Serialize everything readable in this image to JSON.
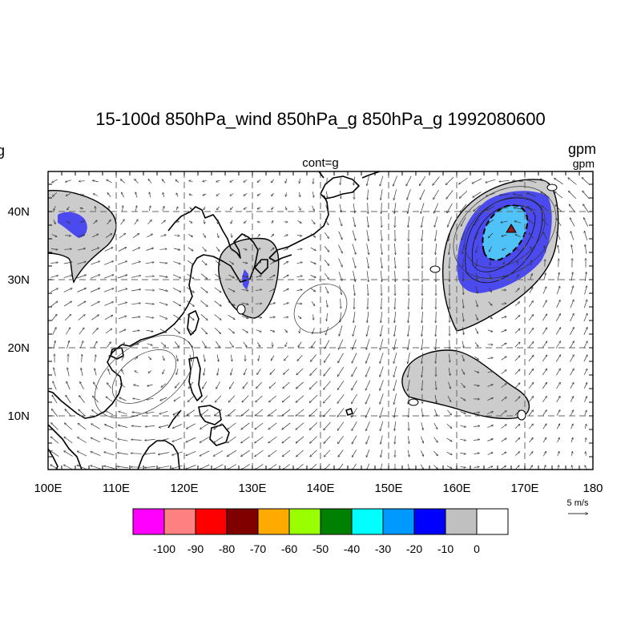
{
  "title": "15-100d 850hPa_wind 850hPa_g 850hPa_g 1992080600",
  "left_partial": "g",
  "center_subtitle": "cont=g",
  "right_units": "gpm",
  "right_units_small": "gpm",
  "ref_vector": {
    "label": "5 m/s"
  },
  "map": {
    "lon_labels": [
      "100E",
      "110E",
      "120E",
      "130E",
      "140E",
      "150E",
      "160E",
      "170E",
      "180"
    ],
    "lat_labels": [
      "10N",
      "20N",
      "30N",
      "40N"
    ],
    "zero_labels": [
      "0",
      "0",
      "0",
      "0",
      "0"
    ]
  },
  "colorbar": {
    "labels": [
      "-100",
      "-90",
      "-80",
      "-70",
      "-60",
      "-50",
      "-40",
      "-30",
      "-20",
      "-10",
      "0"
    ],
    "colors": [
      "#ff00ff",
      "#ff8080",
      "#ff0000",
      "#800000",
      "#ffaa00",
      "#99ff00",
      "#008000",
      "#00ffff",
      "#0099ff",
      "#0000ff",
      "#c0c0c0",
      "#ffffff"
    ]
  },
  "colors": {
    "shade_gray": "#cccccc",
    "shade_blue": "#4a4aee",
    "shade_cyan": "#4fc3f7",
    "marker": "#8b1a1a"
  }
}
